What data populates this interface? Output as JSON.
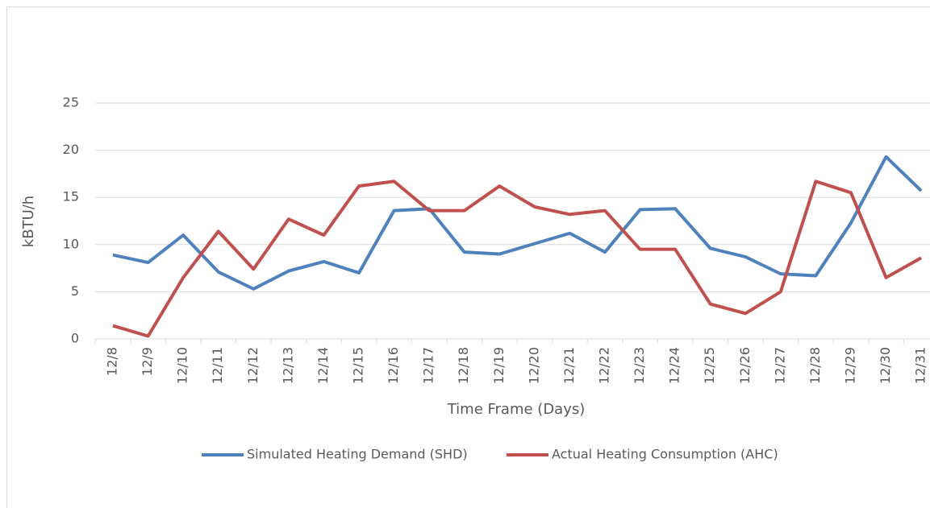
{
  "chart_data": {
    "type": "line",
    "x_label": "Time Frame (Days)",
    "y_label": "kBTU/h",
    "categories": [
      "12/8",
      "12/9",
      "12/10",
      "12/11",
      "12/12",
      "12/13",
      "12/14",
      "12/15",
      "12/16",
      "12/17",
      "12/18",
      "12/19",
      "12/20",
      "12/21",
      "12/22",
      "12/23",
      "12/24",
      "12/25",
      "12/26",
      "12/27",
      "12/28",
      "12/29",
      "12/30",
      "12/31"
    ],
    "series": [
      {
        "name": "Simulated Heating Demand (SHD)",
        "color": "#4f81bd",
        "values": [
          8.9,
          8.1,
          11.0,
          7.1,
          5.3,
          7.2,
          8.2,
          7.0,
          13.6,
          13.8,
          9.2,
          9.0,
          10.1,
          11.2,
          9.2,
          13.7,
          13.8,
          9.6,
          8.7,
          6.9,
          6.7,
          12.3,
          19.3,
          15.7
        ]
      },
      {
        "name": "Actual Heating Consumption (AHC)",
        "color": "#c0504d",
        "values": [
          1.4,
          0.3,
          6.5,
          11.4,
          7.4,
          12.7,
          11.0,
          16.2,
          16.7,
          13.6,
          13.6,
          16.2,
          14.0,
          13.2,
          13.6,
          9.5,
          9.5,
          3.7,
          2.7,
          5.0,
          16.7,
          15.5,
          6.5,
          8.6
        ]
      }
    ],
    "ylim": [
      0,
      25
    ],
    "yticks": [
      0,
      5,
      10,
      15,
      20,
      25
    ],
    "grid": true,
    "legend": "bottom"
  }
}
